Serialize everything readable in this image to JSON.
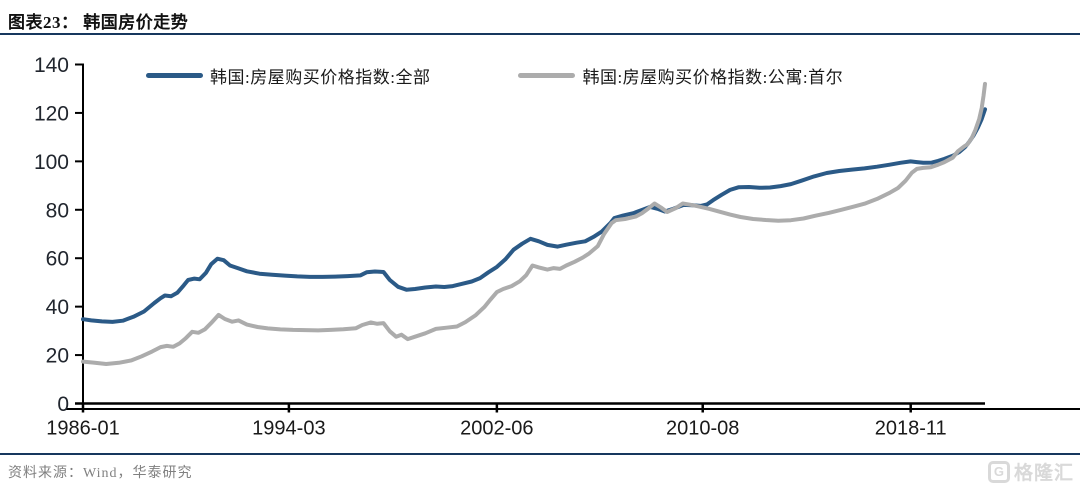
{
  "header": {
    "title": "图表23：  韩国房价走势"
  },
  "footer": {
    "source": "资料来源：Wind，华泰研究",
    "logo_text": "格隆汇",
    "logo_icon": "G"
  },
  "colors": {
    "accent_navy": "#17375E",
    "axis_black": "#000000",
    "y_tick_label": "#21262e",
    "x_tick_label": "#1a1a1a",
    "source_gray": "#808080",
    "logo_gray": "#d9d9d9"
  },
  "chart_data": {
    "type": "line",
    "figure_label": "图表23",
    "title": "韩国房价走势",
    "grid": "off",
    "legend_position": "top",
    "x_unit": "decimal_year (ticks shown as YYYY-MM)",
    "xlim": [
      1986.0,
      2021.78
    ],
    "ylim": [
      0,
      140
    ],
    "y_ticks": [
      0,
      20,
      40,
      60,
      80,
      100,
      120,
      140
    ],
    "x_tick_labels": [
      "1986-01",
      "1994-03",
      "2002-06",
      "2010-08",
      "2018-11"
    ],
    "x_tick_pos": [
      1986.0,
      1994.167,
      2002.417,
      2010.583,
      2018.833
    ],
    "series": [
      {
        "id": "series-line-korea-all",
        "name": "韩国:房屋购买价格指数:全部",
        "color": "#2b5a87",
        "points": [
          [
            1986.0,
            34.8
          ],
          [
            1986.33,
            34.3
          ],
          [
            1986.75,
            33.9
          ],
          [
            1987.17,
            33.7
          ],
          [
            1987.58,
            34.2
          ],
          [
            1988.0,
            35.8
          ],
          [
            1988.42,
            38.0
          ],
          [
            1988.83,
            41.5
          ],
          [
            1989.08,
            43.5
          ],
          [
            1989.25,
            44.6
          ],
          [
            1989.5,
            44.3
          ],
          [
            1989.75,
            45.8
          ],
          [
            1990.0,
            48.8
          ],
          [
            1990.17,
            51.0
          ],
          [
            1990.42,
            51.6
          ],
          [
            1990.63,
            51.3
          ],
          [
            1990.88,
            54.0
          ],
          [
            1991.08,
            57.5
          ],
          [
            1991.33,
            59.8
          ],
          [
            1991.58,
            59.2
          ],
          [
            1991.83,
            57.0
          ],
          [
            1992.17,
            55.8
          ],
          [
            1992.5,
            54.6
          ],
          [
            1993.0,
            53.6
          ],
          [
            1993.5,
            53.2
          ],
          [
            1994.0,
            52.8
          ],
          [
            1994.5,
            52.5
          ],
          [
            1995.0,
            52.3
          ],
          [
            1995.5,
            52.3
          ],
          [
            1996.0,
            52.4
          ],
          [
            1996.5,
            52.6
          ],
          [
            1997.0,
            52.9
          ],
          [
            1997.25,
            54.2
          ],
          [
            1997.58,
            54.5
          ],
          [
            1997.92,
            54.3
          ],
          [
            1998.17,
            51.0
          ],
          [
            1998.5,
            48.2
          ],
          [
            1998.83,
            47.0
          ],
          [
            1999.17,
            47.3
          ],
          [
            1999.58,
            47.9
          ],
          [
            2000.0,
            48.3
          ],
          [
            2000.33,
            48.1
          ],
          [
            2000.67,
            48.5
          ],
          [
            2001.0,
            49.3
          ],
          [
            2001.42,
            50.4
          ],
          [
            2001.75,
            51.8
          ],
          [
            2002.08,
            54.2
          ],
          [
            2002.42,
            56.4
          ],
          [
            2002.75,
            59.5
          ],
          [
            2003.08,
            63.5
          ],
          [
            2003.42,
            66.0
          ],
          [
            2003.75,
            68.0
          ],
          [
            2004.08,
            67.0
          ],
          [
            2004.42,
            65.5
          ],
          [
            2004.83,
            64.8
          ],
          [
            2005.17,
            65.6
          ],
          [
            2005.58,
            66.4
          ],
          [
            2005.92,
            67.0
          ],
          [
            2006.25,
            68.8
          ],
          [
            2006.58,
            71.0
          ],
          [
            2006.92,
            74.5
          ],
          [
            2007.08,
            76.6
          ],
          [
            2007.42,
            77.6
          ],
          [
            2007.83,
            78.6
          ],
          [
            2008.17,
            79.9
          ],
          [
            2008.5,
            81.2
          ],
          [
            2008.83,
            80.3
          ],
          [
            2009.08,
            79.3
          ],
          [
            2009.42,
            80.4
          ],
          [
            2009.83,
            82.0
          ],
          [
            2010.17,
            81.9
          ],
          [
            2010.5,
            81.6
          ],
          [
            2010.75,
            82.2
          ],
          [
            2011.0,
            84.0
          ],
          [
            2011.33,
            86.2
          ],
          [
            2011.67,
            88.2
          ],
          [
            2012.0,
            89.3
          ],
          [
            2012.42,
            89.4
          ],
          [
            2012.83,
            89.1
          ],
          [
            2013.25,
            89.2
          ],
          [
            2013.67,
            89.8
          ],
          [
            2014.08,
            90.6
          ],
          [
            2014.5,
            92.0
          ],
          [
            2015.0,
            93.8
          ],
          [
            2015.5,
            95.2
          ],
          [
            2016.0,
            96.0
          ],
          [
            2016.5,
            96.6
          ],
          [
            2017.0,
            97.1
          ],
          [
            2017.5,
            97.8
          ],
          [
            2018.0,
            98.6
          ],
          [
            2018.42,
            99.4
          ],
          [
            2018.83,
            100.0
          ],
          [
            2019.08,
            99.7
          ],
          [
            2019.33,
            99.4
          ],
          [
            2019.67,
            99.5
          ],
          [
            2019.92,
            100.2
          ],
          [
            2020.17,
            101.0
          ],
          [
            2020.5,
            102.3
          ],
          [
            2020.75,
            103.8
          ],
          [
            2021.0,
            106.0
          ],
          [
            2021.17,
            108.3
          ],
          [
            2021.33,
            110.8
          ],
          [
            2021.5,
            114.0
          ],
          [
            2021.65,
            117.5
          ],
          [
            2021.78,
            121.5
          ]
        ]
      },
      {
        "id": "series-line-seoul-apartment",
        "name": "韩国:房屋购买价格指数:公寓:首尔",
        "color": "#acacac",
        "points": [
          [
            1986.0,
            17.3
          ],
          [
            1986.42,
            16.9
          ],
          [
            1986.92,
            16.3
          ],
          [
            1987.42,
            16.8
          ],
          [
            1987.92,
            17.8
          ],
          [
            1988.33,
            19.5
          ],
          [
            1988.75,
            21.5
          ],
          [
            1989.08,
            23.3
          ],
          [
            1989.33,
            23.8
          ],
          [
            1989.58,
            23.4
          ],
          [
            1989.83,
            24.8
          ],
          [
            1990.08,
            27.0
          ],
          [
            1990.33,
            29.6
          ],
          [
            1990.58,
            29.2
          ],
          [
            1990.83,
            30.6
          ],
          [
            1991.08,
            33.2
          ],
          [
            1991.38,
            36.6
          ],
          [
            1991.63,
            34.9
          ],
          [
            1991.92,
            33.8
          ],
          [
            1992.17,
            34.3
          ],
          [
            1992.5,
            32.6
          ],
          [
            1992.92,
            31.6
          ],
          [
            1993.33,
            31.0
          ],
          [
            1993.83,
            30.6
          ],
          [
            1994.33,
            30.4
          ],
          [
            1994.83,
            30.3
          ],
          [
            1995.33,
            30.2
          ],
          [
            1995.83,
            30.4
          ],
          [
            1996.33,
            30.7
          ],
          [
            1996.83,
            31.1
          ],
          [
            1997.08,
            32.4
          ],
          [
            1997.42,
            33.5
          ],
          [
            1997.67,
            32.9
          ],
          [
            1997.92,
            33.2
          ],
          [
            1998.17,
            29.8
          ],
          [
            1998.42,
            27.6
          ],
          [
            1998.63,
            28.4
          ],
          [
            1998.88,
            26.6
          ],
          [
            1999.17,
            27.6
          ],
          [
            1999.58,
            29.0
          ],
          [
            2000.0,
            30.8
          ],
          [
            2000.42,
            31.3
          ],
          [
            2000.83,
            31.8
          ],
          [
            2001.17,
            33.6
          ],
          [
            2001.58,
            36.5
          ],
          [
            2001.92,
            39.8
          ],
          [
            2002.17,
            43.0
          ],
          [
            2002.42,
            46.0
          ],
          [
            2002.67,
            47.3
          ],
          [
            2003.0,
            48.5
          ],
          [
            2003.33,
            50.5
          ],
          [
            2003.58,
            53.0
          ],
          [
            2003.83,
            57.0
          ],
          [
            2004.08,
            56.2
          ],
          [
            2004.42,
            55.3
          ],
          [
            2004.67,
            55.9
          ],
          [
            2004.92,
            55.6
          ],
          [
            2005.17,
            57.0
          ],
          [
            2005.5,
            58.5
          ],
          [
            2005.83,
            60.3
          ],
          [
            2006.08,
            62.0
          ],
          [
            2006.42,
            65.0
          ],
          [
            2006.67,
            70.0
          ],
          [
            2006.97,
            74.5
          ],
          [
            2007.13,
            75.7
          ],
          [
            2007.5,
            76.2
          ],
          [
            2007.92,
            77.2
          ],
          [
            2008.17,
            78.6
          ],
          [
            2008.42,
            80.5
          ],
          [
            2008.67,
            82.6
          ],
          [
            2008.92,
            81.0
          ],
          [
            2009.17,
            79.1
          ],
          [
            2009.5,
            80.6
          ],
          [
            2009.79,
            82.6
          ],
          [
            2010.08,
            82.1
          ],
          [
            2010.42,
            81.4
          ],
          [
            2010.83,
            80.4
          ],
          [
            2011.25,
            79.2
          ],
          [
            2011.67,
            78.0
          ],
          [
            2012.08,
            77.0
          ],
          [
            2012.58,
            76.2
          ],
          [
            2013.08,
            75.8
          ],
          [
            2013.58,
            75.5
          ],
          [
            2014.08,
            75.7
          ],
          [
            2014.58,
            76.4
          ],
          [
            2015.08,
            77.6
          ],
          [
            2015.58,
            78.7
          ],
          [
            2016.08,
            80.0
          ],
          [
            2016.58,
            81.3
          ],
          [
            2017.0,
            82.5
          ],
          [
            2017.5,
            84.5
          ],
          [
            2018.0,
            87.0
          ],
          [
            2018.33,
            89.0
          ],
          [
            2018.63,
            92.0
          ],
          [
            2018.88,
            95.3
          ],
          [
            2019.08,
            96.9
          ],
          [
            2019.33,
            97.3
          ],
          [
            2019.63,
            97.6
          ],
          [
            2019.92,
            98.6
          ],
          [
            2020.17,
            99.7
          ],
          [
            2020.5,
            101.5
          ],
          [
            2020.71,
            104.2
          ],
          [
            2020.96,
            106.2
          ],
          [
            2021.08,
            107.0
          ],
          [
            2021.25,
            109.5
          ],
          [
            2021.4,
            113.0
          ],
          [
            2021.55,
            117.5
          ],
          [
            2021.65,
            122.0
          ],
          [
            2021.72,
            127.0
          ],
          [
            2021.78,
            132.0
          ]
        ]
      }
    ]
  }
}
